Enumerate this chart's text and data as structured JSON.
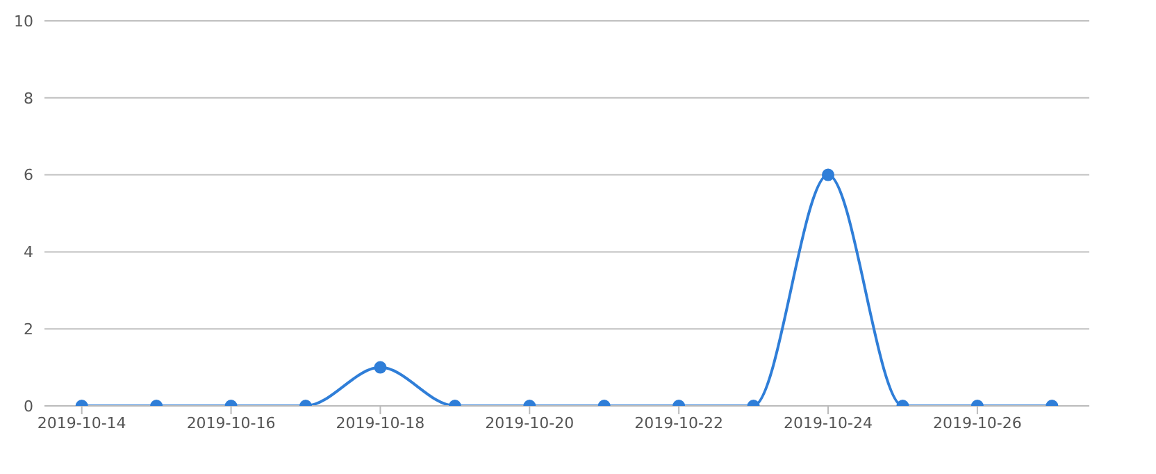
{
  "chart_data": {
    "type": "line",
    "categories": [
      "2019-10-14",
      null,
      "2019-10-16",
      null,
      "2019-10-18",
      null,
      "2019-10-20",
      null,
      "2019-10-22",
      null,
      "2019-10-24",
      null,
      "2019-10-26",
      null
    ],
    "series": [
      {
        "color": "#2f7ed8",
        "values": [
          0,
          0,
          0,
          0,
          1,
          0,
          0,
          0,
          0,
          0,
          6,
          0,
          0,
          0
        ]
      }
    ],
    "ylim": [
      0,
      10
    ],
    "yticks": [
      0,
      2,
      4,
      6,
      8,
      10
    ],
    "grid": "y",
    "marker": "circle",
    "line_style": "solid"
  }
}
